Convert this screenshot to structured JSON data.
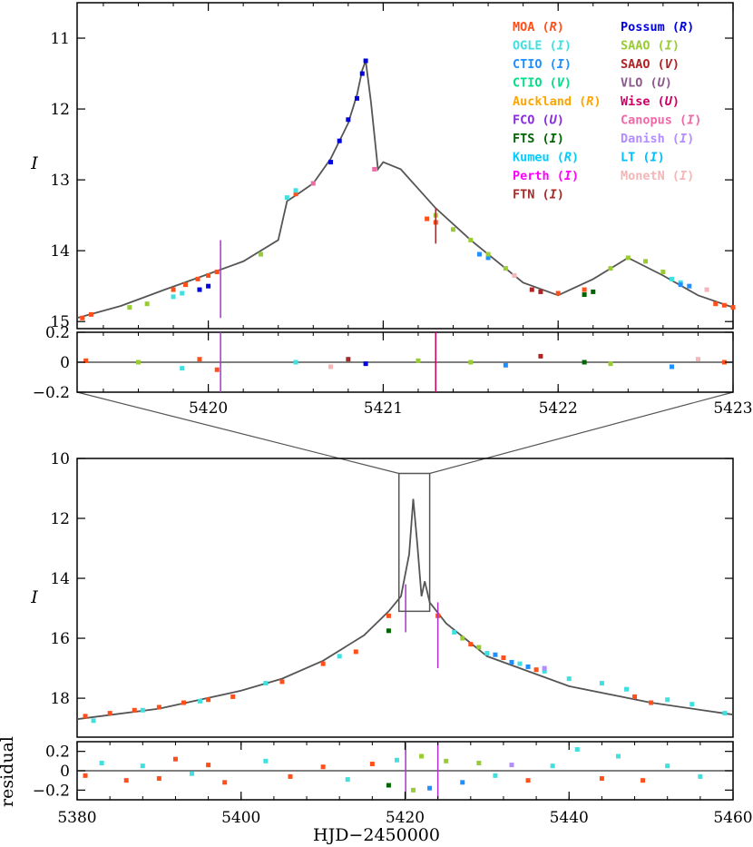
{
  "chart_data": [
    {
      "type": "line",
      "panel": "zoom-light-curve",
      "ylabel": "I",
      "xlim": [
        5419.25,
        5423
      ],
      "ylim": [
        15.1,
        10.5
      ],
      "xticks": [
        5420,
        5421,
        5422,
        5423
      ],
      "xtick_labels": [
        "5420",
        "5421",
        "5422",
        "5423"
      ],
      "yticks": [
        11,
        12,
        13,
        14,
        15
      ],
      "ytick_labels": [
        "11",
        "12",
        "13",
        "14",
        "15"
      ],
      "model_curve": {
        "x": [
          5419.25,
          5419.5,
          5419.75,
          5420.0,
          5420.2,
          5420.4,
          5420.45,
          5420.5,
          5420.6,
          5420.7,
          5420.8,
          5420.85,
          5420.88,
          5420.9,
          5420.93,
          5420.97,
          5421.0,
          5421.1,
          5421.3,
          5421.5,
          5421.8,
          5422.0,
          5422.2,
          5422.4,
          5422.6,
          5422.8,
          5423.0
        ],
        "y": [
          14.95,
          14.78,
          14.55,
          14.33,
          14.15,
          13.85,
          13.3,
          13.22,
          13.05,
          12.7,
          12.2,
          11.8,
          11.45,
          11.32,
          11.9,
          12.85,
          12.75,
          12.85,
          13.4,
          13.85,
          14.45,
          14.63,
          14.4,
          14.1,
          14.35,
          14.63,
          14.8
        ]
      },
      "observations": [
        {
          "name": "MOA (R)",
          "color": "#ff4f1a",
          "x": [
            5419.28,
            5419.33,
            5419.8,
            5419.87,
            5419.94,
            5420.0,
            5420.05,
            5420.5,
            5421.25,
            5421.3,
            5422.0,
            5422.15,
            5422.9,
            5422.95,
            5423.0
          ],
          "y": [
            14.95,
            14.9,
            14.55,
            14.48,
            14.4,
            14.35,
            14.3,
            13.2,
            13.55,
            13.6,
            14.6,
            14.55,
            14.75,
            14.77,
            14.8
          ]
        },
        {
          "name": "OGLE (I)",
          "color": "#40e0e0",
          "x": [
            5419.8,
            5419.85,
            5420.45,
            5420.5,
            5422.65,
            5422.7
          ],
          "y": [
            14.65,
            14.6,
            13.25,
            13.15,
            14.4,
            14.45
          ]
        },
        {
          "name": "CTIO (I)",
          "color": "#1e90ff",
          "x": [
            5421.55,
            5421.6,
            5422.7,
            5422.75
          ],
          "y": [
            14.05,
            14.1,
            14.48,
            14.5
          ]
        },
        {
          "name": "Possum (R)",
          "color": "#0000dd",
          "x": [
            5419.95,
            5420.0,
            5420.7,
            5420.75,
            5420.8,
            5420.85,
            5420.88,
            5420.9
          ],
          "y": [
            14.55,
            14.5,
            12.75,
            12.45,
            12.15,
            11.85,
            11.5,
            11.32
          ]
        },
        {
          "name": "SAAO (I)",
          "color": "#99cc33",
          "x": [
            5419.55,
            5419.65,
            5420.3,
            5421.3,
            5421.4,
            5421.5,
            5421.6,
            5421.7,
            5422.3,
            5422.4,
            5422.5,
            5422.6
          ],
          "y": [
            14.8,
            14.75,
            14.05,
            13.5,
            13.7,
            13.85,
            14.05,
            14.25,
            14.25,
            14.1,
            14.15,
            14.3
          ]
        },
        {
          "name": "SAAO (V)",
          "color": "#b22222",
          "x": [
            5421.85,
            5421.9
          ],
          "y": [
            14.55,
            14.58
          ]
        },
        {
          "name": "FTS (I)",
          "color": "#006400",
          "x": [
            5422.15,
            5422.2
          ],
          "y": [
            14.62,
            14.58
          ]
        },
        {
          "name": "Canopus (I)",
          "color": "#ee6aa7",
          "x": [
            5420.6,
            5420.95
          ],
          "y": [
            13.05,
            12.85
          ]
        },
        {
          "name": "MonetN (I)",
          "color": "#f4b6b6",
          "x": [
            5421.75,
            5422.85
          ],
          "y": [
            14.35,
            14.55
          ]
        }
      ],
      "legend": {
        "placement": "top-right",
        "entries": [
          {
            "instrument": "MOA",
            "band": "R",
            "color": "#ff4f1a"
          },
          {
            "instrument": "OGLE",
            "band": "I",
            "color": "#40e0e0"
          },
          {
            "instrument": "CTIO",
            "band": "I",
            "color": "#1e90ff"
          },
          {
            "instrument": "CTIO",
            "band": "V",
            "color": "#00dd88"
          },
          {
            "instrument": "Auckland",
            "band": "R",
            "color": "#ffa500"
          },
          {
            "instrument": "FCO",
            "band": "U",
            "color": "#8a2be2"
          },
          {
            "instrument": "FTS",
            "band": "I",
            "color": "#006400"
          },
          {
            "instrument": "Kumeu",
            "band": "R",
            "color": "#00ccff"
          },
          {
            "instrument": "Perth",
            "band": "I",
            "color": "#ff00ff"
          },
          {
            "instrument": "FTN",
            "band": "I",
            "color": "#a52a2a"
          },
          {
            "instrument": "Possum",
            "band": "R",
            "color": "#0000dd"
          },
          {
            "instrument": "SAAO",
            "band": "I",
            "color": "#99cc33"
          },
          {
            "instrument": "SAAO",
            "band": "V",
            "color": "#b22222"
          },
          {
            "instrument": "VLO",
            "band": "U",
            "color": "#8b5a8b"
          },
          {
            "instrument": "Wise",
            "band": "U",
            "color": "#cc0066"
          },
          {
            "instrument": "Canopus",
            "band": "I",
            "color": "#ee6aa7"
          },
          {
            "instrument": "Danish",
            "band": "I",
            "color": "#b38cff"
          },
          {
            "instrument": "LT",
            "band": "I",
            "color": "#00bfff"
          },
          {
            "instrument": "MonetN",
            "band": "I",
            "color": "#f4b6b6"
          }
        ]
      }
    },
    {
      "type": "scatter",
      "panel": "zoom-residuals",
      "xlim": [
        5419.25,
        5423
      ],
      "ylim": [
        -0.2,
        0.2
      ],
      "yticks": [
        0.2,
        0,
        -0.2
      ],
      "ytick_labels": [
        "0.2",
        "0",
        "−0.2"
      ],
      "xticks": [
        5420,
        5421,
        5422,
        5423
      ],
      "xtick_labels": [
        "5420",
        "5421",
        "5422",
        "5423"
      ],
      "errorbars": [
        {
          "x": 5420.07,
          "y": 0,
          "err": 0.2,
          "color": "#aa33cc"
        },
        {
          "x": 5421.3,
          "y": 0,
          "err": 0.2,
          "color": "#cc0066"
        }
      ],
      "points": {
        "x": [
          5419.3,
          5419.6,
          5419.85,
          5419.95,
          5420.05,
          5420.5,
          5420.7,
          5420.8,
          5420.9,
          5421.2,
          5421.5,
          5421.7,
          5421.9,
          5422.15,
          5422.3,
          5422.65,
          5422.8,
          5422.95
        ],
        "y": [
          0.01,
          0.0,
          -0.04,
          0.02,
          -0.05,
          0.0,
          -0.03,
          0.02,
          -0.01,
          0.01,
          0.0,
          -0.02,
          0.04,
          0.0,
          -0.01,
          -0.03,
          0.02,
          0.0
        ],
        "colors": [
          "#ff4f1a",
          "#99cc33",
          "#40e0e0",
          "#ff4f1a",
          "#ff4f1a",
          "#40e0e0",
          "#f4b6b6",
          "#a52a2a",
          "#0000dd",
          "#99cc33",
          "#99cc33",
          "#1e90ff",
          "#b22222",
          "#006400",
          "#99cc33",
          "#1e90ff",
          "#f4b6b6",
          "#ff4f1a"
        ]
      }
    },
    {
      "type": "line",
      "panel": "full-light-curve",
      "ylabel": "I",
      "xlim": [
        5380,
        5460
      ],
      "ylim": [
        19.3,
        10
      ],
      "yticks": [
        10,
        12,
        14,
        16,
        18
      ],
      "ytick_labels": [
        "10",
        "12",
        "14",
        "16",
        "18"
      ],
      "zoom_box": {
        "x": [
          5419.25,
          5423
        ],
        "y": [
          10.5,
          15.1
        ]
      },
      "model_curve": {
        "x": [
          5380,
          5390,
          5400,
          5405,
          5410,
          5415,
          5418,
          5419.5,
          5420.5,
          5421,
          5421.5,
          5422,
          5422.4,
          5423,
          5425,
          5430,
          5440,
          5450,
          5460
        ],
        "y": [
          18.7,
          18.35,
          17.75,
          17.35,
          16.75,
          15.9,
          15.1,
          14.6,
          13.2,
          11.35,
          12.9,
          14.6,
          14.1,
          14.8,
          15.5,
          16.6,
          17.6,
          18.15,
          18.55
        ]
      },
      "observations": [
        {
          "name": "MOA (R)",
          "color": "#ff4f1a",
          "x": [
            5381,
            5384,
            5387,
            5390,
            5393,
            5396,
            5399,
            5405,
            5410,
            5414,
            5418,
            5424,
            5428,
            5432,
            5436,
            5448,
            5450
          ],
          "y": [
            18.6,
            18.5,
            18.4,
            18.3,
            18.15,
            18.05,
            17.95,
            17.45,
            16.85,
            16.45,
            15.25,
            15.25,
            16.2,
            16.65,
            17.05,
            17.95,
            18.15
          ]
        },
        {
          "name": "OGLE (I)",
          "color": "#40e0e0",
          "x": [
            5382,
            5388,
            5395,
            5403,
            5412,
            5426,
            5430,
            5434,
            5437,
            5440,
            5444,
            5447,
            5452,
            5455,
            5459
          ],
          "y": [
            18.75,
            18.4,
            18.1,
            17.5,
            16.6,
            15.8,
            16.5,
            16.85,
            17.1,
            17.35,
            17.5,
            17.7,
            18.05,
            18.2,
            18.5
          ]
        },
        {
          "name": "SAAO (I)",
          "color": "#99cc33",
          "x": [
            5427,
            5429
          ],
          "y": [
            16.0,
            16.3
          ]
        },
        {
          "name": "CTIO (I)",
          "color": "#1e90ff",
          "x": [
            5431,
            5433,
            5435
          ],
          "y": [
            16.55,
            16.8,
            16.95
          ]
        },
        {
          "name": "Danish (I)",
          "color": "#b38cff",
          "x": [
            5437
          ],
          "y": [
            17.0
          ]
        },
        {
          "name": "FTS (I)",
          "color": "#006400",
          "x": [
            5418
          ],
          "y": [
            15.75
          ]
        }
      ]
    },
    {
      "type": "scatter",
      "panel": "full-residuals",
      "xlabel": "HJD−2450000",
      "ylabel": "residual",
      "xlim": [
        5380,
        5460
      ],
      "ylim": [
        -0.3,
        0.3
      ],
      "xticks": [
        5380,
        5400,
        5420,
        5440,
        5460
      ],
      "xtick_labels": [
        "5380",
        "5400",
        "5420",
        "5440",
        "5460"
      ],
      "yticks": [
        0.2,
        0,
        -0.2
      ],
      "ytick_labels": [
        "0.2",
        "0",
        "−0.2"
      ],
      "errorbars": [
        {
          "x": 5420.07,
          "y": 0,
          "err": 0.3,
          "color": "#aa33cc"
        },
        {
          "x": 5424,
          "y": 0,
          "err": 0.3,
          "color": "#aa33cc"
        }
      ],
      "points": {
        "x": [
          5381,
          5383,
          5386,
          5388,
          5390,
          5392,
          5394,
          5396,
          5398,
          5403,
          5406,
          5410,
          5413,
          5416,
          5418,
          5419,
          5421,
          5422,
          5423,
          5425,
          5427,
          5429,
          5431,
          5433,
          5435,
          5438,
          5441,
          5444,
          5446,
          5449,
          5452,
          5456
        ],
        "y": [
          -0.05,
          0.08,
          -0.1,
          0.05,
          -0.08,
          0.12,
          -0.03,
          0.06,
          -0.12,
          0.1,
          -0.06,
          0.04,
          -0.09,
          0.07,
          -0.15,
          0.11,
          -0.2,
          0.15,
          -0.18,
          0.1,
          -0.12,
          0.08,
          -0.05,
          0.06,
          -0.1,
          0.05,
          0.22,
          -0.08,
          0.15,
          -0.1,
          0.05,
          -0.06
        ],
        "colors": [
          "#ff4f1a",
          "#40e0e0",
          "#ff4f1a",
          "#40e0e0",
          "#ff4f1a",
          "#ff4f1a",
          "#40e0e0",
          "#ff4f1a",
          "#ff4f1a",
          "#40e0e0",
          "#ff4f1a",
          "#ff4f1a",
          "#40e0e0",
          "#ff4f1a",
          "#006400",
          "#40e0e0",
          "#99cc33",
          "#99cc33",
          "#1e90ff",
          "#99cc33",
          "#1e90ff",
          "#99cc33",
          "#40e0e0",
          "#b38cff",
          "#ff4f1a",
          "#40e0e0",
          "#40e0e0",
          "#ff4f1a",
          "#40e0e0",
          "#ff4f1a",
          "#40e0e0",
          "#40e0e0"
        ]
      }
    }
  ]
}
